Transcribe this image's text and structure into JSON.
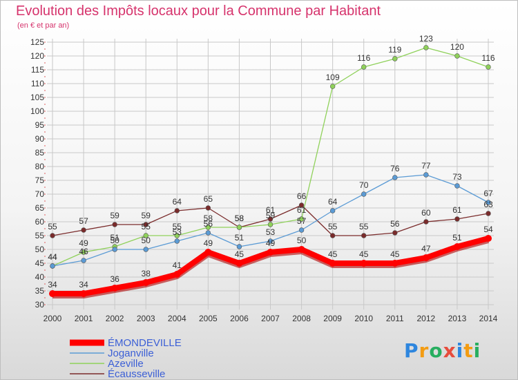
{
  "title": "Evolution des Impôts locaux pour la Commune par Habitant",
  "subtitle": "(en € et par an)",
  "logo_text": "Proxiti",
  "chart_data": {
    "type": "line",
    "title": "Evolution des Impôts locaux pour la Commune par Habitant",
    "ylabel": "(en € et par an)",
    "xlabel": "",
    "categories": [
      "2000",
      "2001",
      "2002",
      "2003",
      "2004",
      "2005",
      "2006",
      "2007",
      "2008",
      "2009",
      "2010",
      "2011",
      "2012",
      "2013",
      "2014"
    ],
    "ylim": [
      30,
      125
    ],
    "yticks": [
      30,
      35,
      40,
      45,
      50,
      55,
      60,
      65,
      70,
      75,
      80,
      85,
      90,
      95,
      100,
      105,
      110,
      115,
      120,
      125
    ],
    "grid": true,
    "legend_position": "bottom-left",
    "series": [
      {
        "name": "ÉMONDEVILLE",
        "color": "#ff0000",
        "values": [
          34,
          34,
          36,
          38,
          41,
          49,
          45,
          49,
          50,
          45,
          45,
          45,
          47,
          51,
          54
        ]
      },
      {
        "name": "Joganville",
        "color": "#5b9bd5",
        "values": [
          44,
          46,
          50,
          50,
          53,
          56,
          51,
          53,
          57,
          64,
          70,
          76,
          77,
          73,
          67
        ]
      },
      {
        "name": "Azeville",
        "color": "#8fd15a",
        "values": [
          44,
          49,
          51,
          55,
          55,
          58,
          58,
          59,
          61,
          109,
          116,
          119,
          123,
          120,
          116
        ]
      },
      {
        "name": "Écausseville",
        "color": "#7a2b2b",
        "values": [
          55,
          57,
          59,
          59,
          64,
          65,
          58,
          61,
          66,
          55,
          55,
          56,
          60,
          61,
          63
        ]
      }
    ]
  }
}
